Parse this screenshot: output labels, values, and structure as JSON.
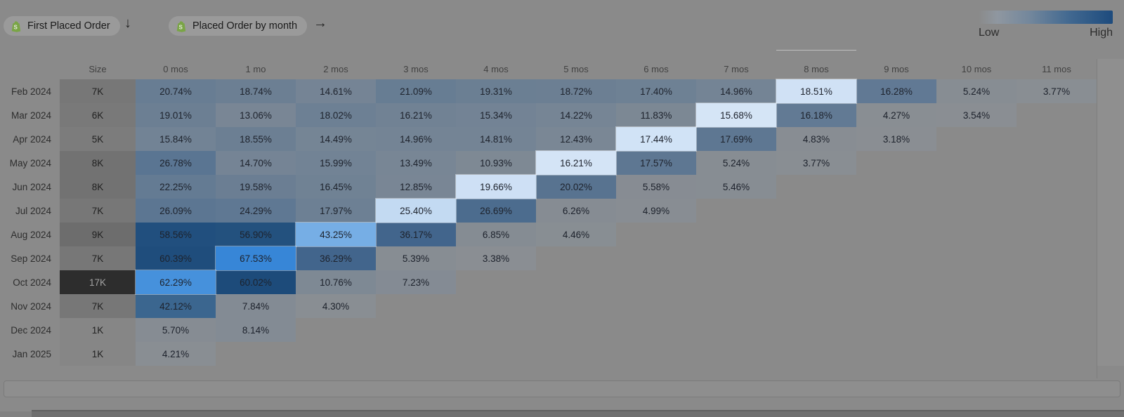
{
  "header": {
    "chips": [
      {
        "label": "First Placed Order",
        "icon": "shopify-icon"
      },
      {
        "label": "Placed Order by month",
        "icon": "shopify-icon"
      }
    ],
    "arrow_down": "↓",
    "arrow_right": "→"
  },
  "legend": {
    "low": "Low",
    "high": "High"
  },
  "chart_data": {
    "type": "heatmap",
    "title": "Cohort retention heatmap: First Placed Order → Placed Order by month",
    "columns": [
      "Size",
      "0 mos",
      "1 mo",
      "2 mos",
      "3 mos",
      "4 mos",
      "5 mos",
      "6 mos",
      "7 mos",
      "8 mos",
      "9 mos",
      "10 mos",
      "11 mos"
    ],
    "value_unit": "%",
    "legend": {
      "low": "Low",
      "high": "High"
    },
    "rows": [
      {
        "label": "Feb 2024",
        "size": "7K",
        "values": [
          20.74,
          18.74,
          14.61,
          21.09,
          19.31,
          18.72,
          17.4,
          14.96,
          18.51,
          16.28,
          5.24,
          3.77
        ],
        "hl": 8,
        "semi": 9
      },
      {
        "label": "Mar 2024",
        "size": "6K",
        "values": [
          19.01,
          13.06,
          18.02,
          16.21,
          15.34,
          14.22,
          11.83,
          15.68,
          16.18,
          4.27,
          3.54
        ],
        "hl": 7,
        "semi": 8
      },
      {
        "label": "Apr 2024",
        "size": "5K",
        "values": [
          15.84,
          18.55,
          14.49,
          14.96,
          14.81,
          12.43,
          17.44,
          17.69,
          4.83,
          3.18
        ],
        "hl": 6,
        "semi": 7
      },
      {
        "label": "May 2024",
        "size": "8K",
        "values": [
          26.78,
          14.7,
          15.99,
          13.49,
          10.93,
          16.21,
          17.57,
          5.24,
          3.77
        ],
        "hl": 5,
        "semi": 6
      },
      {
        "label": "Jun 2024",
        "size": "8K",
        "values": [
          22.25,
          19.58,
          16.45,
          12.85,
          19.66,
          20.02,
          5.58,
          5.46
        ],
        "hl": 4,
        "semi": 5
      },
      {
        "label": "Jul 2024",
        "size": "7K",
        "values": [
          26.09,
          24.29,
          17.97,
          25.4,
          26.69,
          6.26,
          4.99
        ],
        "hl": 3,
        "semi": 4
      },
      {
        "label": "Aug 2024",
        "size": "9K",
        "values": [
          58.56,
          56.9,
          43.25,
          36.17,
          6.85,
          4.46
        ],
        "hl": 2,
        "semi": 3
      },
      {
        "label": "Sep 2024",
        "size": "7K",
        "values": [
          60.39,
          67.53,
          36.29,
          5.39,
          3.38
        ],
        "hl": 1,
        "semi": 2
      },
      {
        "label": "Oct 2024",
        "size": "17K",
        "values": [
          62.29,
          60.02,
          10.76,
          7.23
        ],
        "hl": 0,
        "semi": 1
      },
      {
        "label": "Nov 2024",
        "size": "7K",
        "values": [
          42.12,
          7.84,
          4.3
        ],
        "hl": -1,
        "semi": 0
      },
      {
        "label": "Dec 2024",
        "size": "1K",
        "values": [
          5.7,
          8.14
        ],
        "hl": -1,
        "semi": -1
      },
      {
        "label": "Jan 2025",
        "size": "1K",
        "values": [
          4.21
        ],
        "hl": -1,
        "semi": -1
      }
    ]
  },
  "colors": {
    "page_bg": "#8a8a8a",
    "chip_bg": "#9a9a9a",
    "shopify_green": "#7aa546",
    "legend_gradient": [
      "rgba(154,155,157,0)",
      "#8f97a0",
      "#73879c",
      "#416890",
      "#1d4b7d"
    ],
    "heat_dim": [
      [
        0,
        "#8f9092"
      ],
      [
        4,
        "#898e93"
      ],
      [
        6,
        "#868c93"
      ],
      [
        8,
        "#838b94"
      ],
      [
        11,
        "#7e8994"
      ],
      [
        13,
        "#798695"
      ],
      [
        15,
        "#748495"
      ],
      [
        17,
        "#6f8194"
      ],
      [
        20,
        "#6a7e93"
      ],
      [
        23,
        "#627a93"
      ],
      [
        27,
        "#5a7592"
      ],
      [
        32,
        "#4f6e8e"
      ],
      [
        37,
        "#486b8f"
      ],
      [
        43,
        "#3f6992"
      ],
      [
        50,
        "#2f5c88"
      ],
      [
        55,
        "#26527f"
      ],
      [
        58,
        "#22507e"
      ],
      [
        61,
        "#1e4c7c"
      ],
      [
        70,
        "#17416f"
      ]
    ],
    "heat_semi": [
      [
        14,
        "#6c8097"
      ],
      [
        16,
        "#627a94"
      ],
      [
        18,
        "#5d7692"
      ],
      [
        20,
        "#587390"
      ],
      [
        26,
        "#4d6c8e"
      ],
      [
        33,
        "#45678c"
      ],
      [
        36,
        "#42658c"
      ],
      [
        43,
        "#3a6690"
      ],
      [
        55,
        "#25507d"
      ],
      [
        60,
        "#1d4b7a"
      ],
      [
        68,
        "#174373"
      ]
    ],
    "heat_bright": [
      [
        14,
        "#d9e8f8"
      ],
      [
        16,
        "#d4e4f6"
      ],
      [
        20,
        "#cde0f5"
      ],
      [
        26,
        "#c2d9f2"
      ],
      [
        35,
        "#93bfeb"
      ],
      [
        44,
        "#73ace4"
      ],
      [
        55,
        "#5399de"
      ],
      [
        63,
        "#4590dc"
      ],
      [
        68,
        "#3585d6"
      ]
    ],
    "size_colors": {
      "1K": "#868686",
      "5K": "#7c7c7c",
      "6K": "#797979",
      "7K": "#777777",
      "8K": "#727272",
      "9K": "#6d6d6d",
      "17K": "#2d2d2d"
    },
    "size_text_dark": "#212121",
    "size_text_light": "#a3a3a3",
    "cell_text": "#1d222c"
  }
}
